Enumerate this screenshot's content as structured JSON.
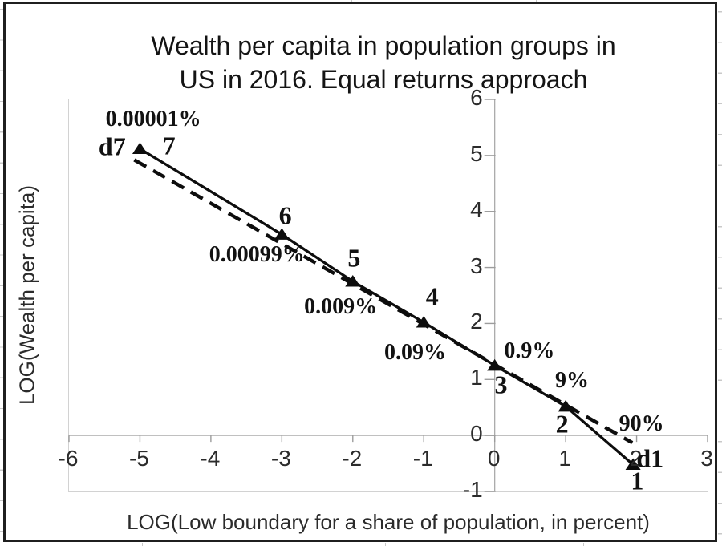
{
  "frame": {
    "type": "embedded-chart-object",
    "border_color": "#1f1f1f",
    "background": "#ffffff",
    "line_color": "#0d0d0d",
    "axis_color": "#ababab",
    "plot_border_color": "#d2d2d2"
  },
  "title": {
    "line1": "Wealth per capita in population groups in",
    "line2": "US in 2016. Equal returns approach"
  },
  "chart_data": {
    "type": "line",
    "title": "Wealth per capita in population groups in US in 2016. Equal returns approach",
    "xlabel": "LOG(Low boundary for a share of population, in percent)",
    "ylabel": "LOG(Wealth per capita)",
    "xlim": [
      -6,
      3
    ],
    "ylim": [
      -1,
      6
    ],
    "x_ticks": [
      -6,
      -5,
      -4,
      -3,
      -2,
      -1,
      0,
      1,
      2,
      3
    ],
    "y_ticks": [
      6,
      5,
      4,
      3,
      2,
      1,
      0,
      -1
    ],
    "grid": false,
    "legend": false,
    "series": [
      {
        "name": "population-groups-solid",
        "style": "solid",
        "marker": "triangle",
        "points": [
          [
            -5,
            5.12
          ],
          [
            -3,
            3.59
          ],
          [
            -2,
            2.75
          ],
          [
            -1,
            2.02
          ],
          [
            0,
            1.25
          ],
          [
            1,
            0.52
          ],
          [
            1.95,
            -0.52
          ]
        ],
        "point_labels": [
          "7",
          "6",
          "5",
          "4",
          "3",
          "2",
          "1"
        ],
        "share_labels": [
          "0.00001%",
          "0.00099%",
          "0.009%",
          "0.09%",
          "0.9%",
          "9%",
          "90%"
        ]
      },
      {
        "name": "decile-endpoints-dashed",
        "style": "dashed",
        "marker": "none",
        "points": [
          [
            -5.08,
            4.92
          ],
          [
            1.94,
            -0.13
          ]
        ],
        "point_labels": [
          "d7",
          "d1"
        ]
      }
    ],
    "annotations": [
      {
        "text": "0.00001%",
        "x": -4.8,
        "y": 5.63,
        "kind": "share"
      },
      {
        "text": "d7",
        "x": -5.38,
        "y": 5.14,
        "kind": "point"
      },
      {
        "text": "7",
        "x": -4.58,
        "y": 5.15,
        "kind": "point"
      },
      {
        "text": "6",
        "x": -2.94,
        "y": 3.91,
        "kind": "point"
      },
      {
        "text": "0.00099%",
        "x": -3.34,
        "y": 3.21,
        "kind": "share"
      },
      {
        "text": "5",
        "x": -1.97,
        "y": 3.15,
        "kind": "point"
      },
      {
        "text": "0.009%",
        "x": -2.16,
        "y": 2.28,
        "kind": "share"
      },
      {
        "text": "4",
        "x": -0.87,
        "y": 2.46,
        "kind": "point"
      },
      {
        "text": "0.09%",
        "x": -1.11,
        "y": 1.46,
        "kind": "share"
      },
      {
        "text": "0.9%",
        "x": 0.5,
        "y": 1.49,
        "kind": "share"
      },
      {
        "text": "3",
        "x": 0.1,
        "y": 0.89,
        "kind": "point"
      },
      {
        "text": "9%",
        "x": 1.1,
        "y": 0.96,
        "kind": "share"
      },
      {
        "text": "2",
        "x": 0.96,
        "y": 0.19,
        "kind": "point"
      },
      {
        "text": "90%",
        "x": 2.08,
        "y": 0.19,
        "kind": "share"
      },
      {
        "text": "d1",
        "x": 2.2,
        "y": -0.43,
        "kind": "point"
      },
      {
        "text": "1",
        "x": 2.02,
        "y": -0.83,
        "kind": "point"
      }
    ]
  }
}
